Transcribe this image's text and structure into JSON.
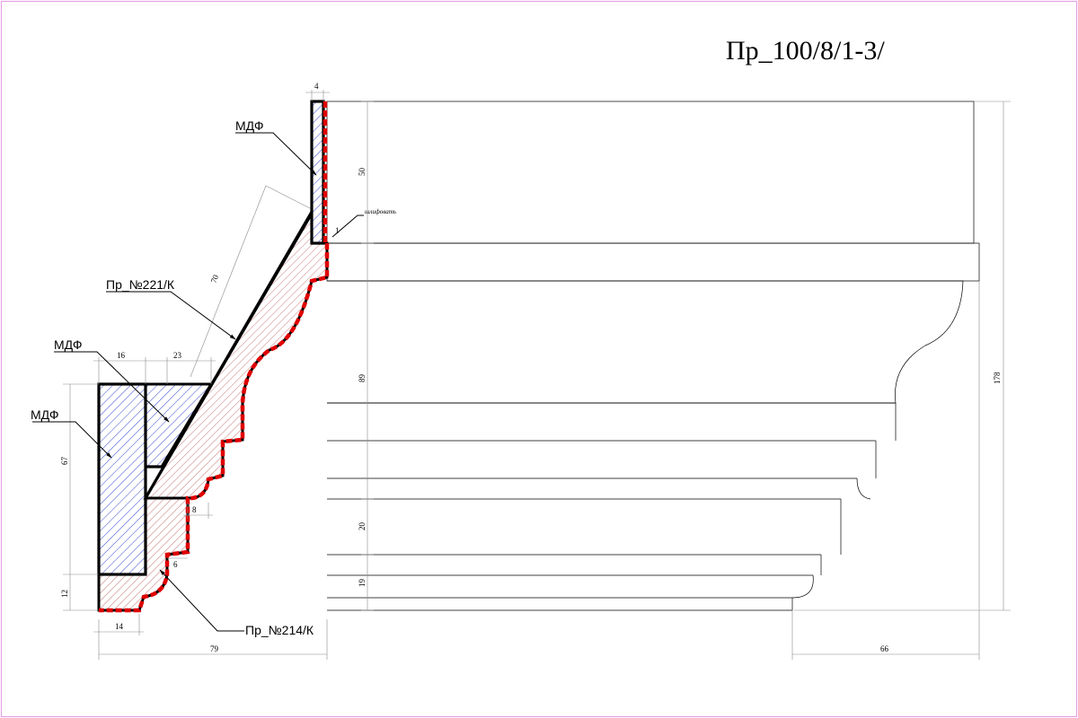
{
  "title": "Пр_100/8/1-3/",
  "labels": {
    "mdf_top": "МДФ",
    "mdf_mid": "МДФ",
    "mdf_left": "МДФ",
    "profile_221": "Пр_№221/К",
    "profile_214": "Пр_№214/К",
    "sanding_note": "шлифовать"
  },
  "dimensions": {
    "d4": "4",
    "d50": "50",
    "d1": "1",
    "d70": "70",
    "d16": "16",
    "d23": "23",
    "d89": "89",
    "d67": "67",
    "d8": "8",
    "d20": "20",
    "d6": "6",
    "d12": "12",
    "d19": "19",
    "d14": "14",
    "d79": "79",
    "d66": "66",
    "d178": "178"
  },
  "colors": {
    "frame": "#e6a0e6",
    "outline": "#000000",
    "sanded_edge": "#e00000",
    "mdf_hatch": "#2233cc",
    "wood_hatch": "#b04040"
  }
}
